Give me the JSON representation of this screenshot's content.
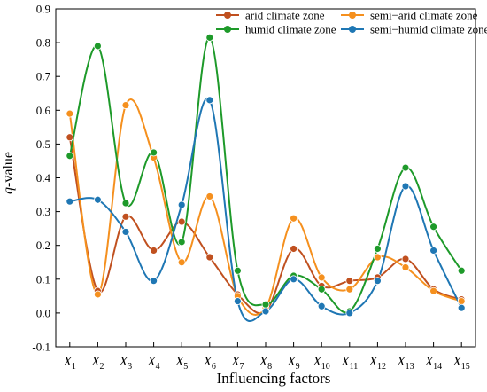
{
  "chart_data": {
    "type": "line",
    "title": "",
    "xlabel": "Influencing factors",
    "ylabel_parts": {
      "italic": "q",
      "rest": "-value"
    },
    "categories": [
      {
        "base": "X",
        "sub": "1"
      },
      {
        "base": "X",
        "sub": "2"
      },
      {
        "base": "X",
        "sub": "3"
      },
      {
        "base": "X",
        "sub": "4"
      },
      {
        "base": "X",
        "sub": "5"
      },
      {
        "base": "X",
        "sub": "6"
      },
      {
        "base": "X",
        "sub": "7"
      },
      {
        "base": "X",
        "sub": "8"
      },
      {
        "base": "X",
        "sub": "9"
      },
      {
        "base": "X",
        "sub": "10"
      },
      {
        "base": "X",
        "sub": "11"
      },
      {
        "base": "X",
        "sub": "12"
      },
      {
        "base": "X",
        "sub": "13"
      },
      {
        "base": "X",
        "sub": "14"
      },
      {
        "base": "X",
        "sub": "15"
      }
    ],
    "ylim": [
      -0.1,
      0.9
    ],
    "yticks": [
      "-0.1",
      "0.0",
      "0.1",
      "0.2",
      "0.3",
      "0.4",
      "0.5",
      "0.6",
      "0.7",
      "0.8",
      "0.9"
    ],
    "yticks_values": [
      -0.1,
      0.0,
      0.1,
      0.2,
      0.3,
      0.4,
      0.5,
      0.6,
      0.7,
      0.8,
      0.9
    ],
    "grid": false,
    "legend_position": "top",
    "series": [
      {
        "name": "arid climate zone",
        "color": "#c0501f",
        "values": [
          0.52,
          0.065,
          0.285,
          0.185,
          0.27,
          0.165,
          0.055,
          0.005,
          0.19,
          0.08,
          0.095,
          0.105,
          0.16,
          0.07,
          0.04
        ]
      },
      {
        "name": "semi−arid climate zone",
        "color": "#f5901e",
        "values": [
          0.59,
          0.055,
          0.615,
          0.46,
          0.15,
          0.345,
          0.05,
          0.015,
          0.28,
          0.105,
          0.07,
          0.165,
          0.135,
          0.065,
          0.035
        ]
      },
      {
        "name": "humid climate zone",
        "color": "#1e9a2a",
        "values": [
          0.465,
          0.79,
          0.325,
          0.475,
          0.21,
          0.815,
          0.125,
          0.025,
          0.11,
          0.07,
          0.005,
          0.19,
          0.43,
          0.255,
          0.125
        ]
      },
      {
        "name": "semi−humid climate zone",
        "color": "#1f77b4",
        "values": [
          0.33,
          0.335,
          0.24,
          0.095,
          0.32,
          0.63,
          0.035,
          0.005,
          0.1,
          0.02,
          0.0,
          0.095,
          0.375,
          0.185,
          0.015
        ]
      }
    ]
  }
}
